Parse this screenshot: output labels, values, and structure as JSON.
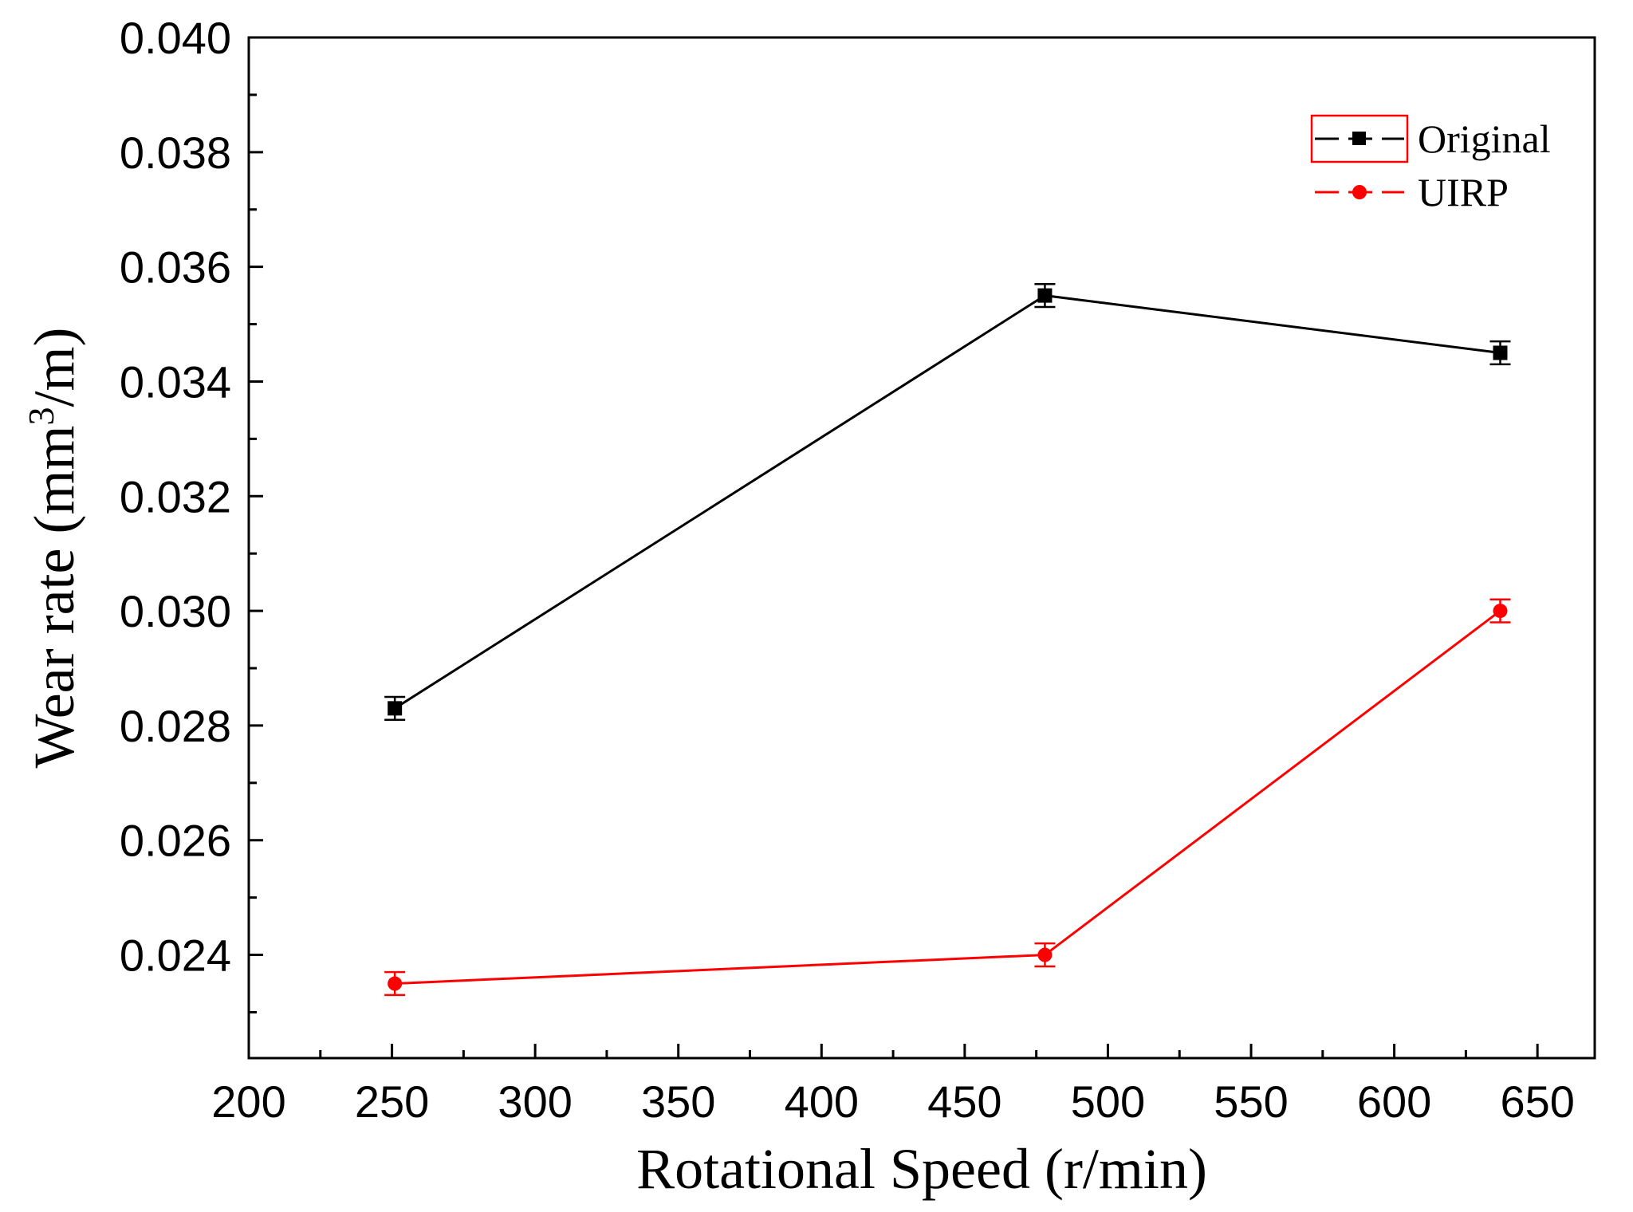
{
  "chart_data": {
    "type": "line",
    "title": "",
    "xlabel": "Rotational Speed (r/min)",
    "ylabel": "Wear rate (mm",
    "ylabel_superscript": "3",
    "ylabel_suffix": "/m)",
    "xlim": [
      200,
      670
    ],
    "ylim": [
      0.0222,
      0.04
    ],
    "x_ticks": [
      200,
      250,
      300,
      350,
      400,
      450,
      500,
      550,
      600,
      650
    ],
    "y_ticks": [
      0.024,
      0.026,
      0.028,
      0.03,
      0.032,
      0.034,
      0.036,
      0.038,
      0.04
    ],
    "x_tick_labels": [
      "200",
      "250",
      "300",
      "350",
      "400",
      "450",
      "500",
      "550",
      "600",
      "650"
    ],
    "y_tick_labels": [
      "0.024",
      "0.026",
      "0.028",
      "0.030",
      "0.032",
      "0.034",
      "0.036",
      "0.038",
      "0.040"
    ],
    "grid": false,
    "legend_position": "top-right",
    "series": [
      {
        "name": "Original",
        "color": "#000000",
        "marker": "square",
        "x": [
          251,
          478,
          637
        ],
        "y": [
          0.0283,
          0.0355,
          0.0345
        ],
        "error": [
          0.0002,
          0.0002,
          0.0002
        ]
      },
      {
        "name": "UIRP",
        "color": "#ff0000",
        "marker": "circle",
        "x": [
          251,
          478,
          637
        ],
        "y": [
          0.0235,
          0.024,
          0.03
        ],
        "error": [
          0.0002,
          0.0002,
          0.0002
        ]
      }
    ]
  }
}
